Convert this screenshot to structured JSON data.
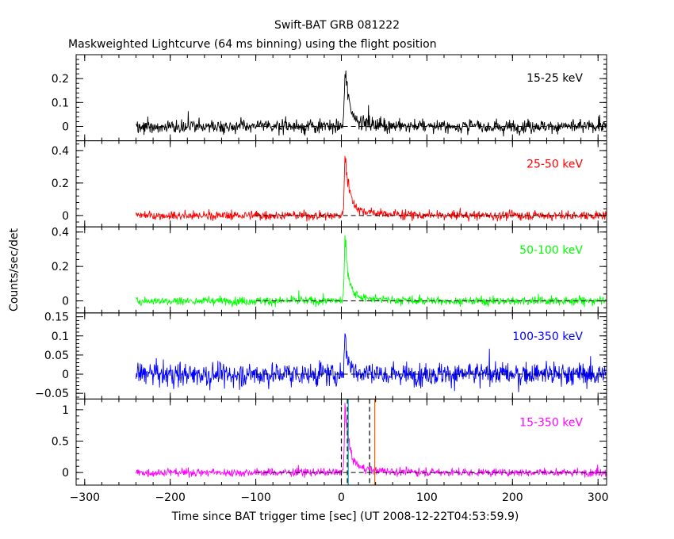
{
  "chart_data": {
    "type": "line",
    "title": "Swift-BAT GRB 081222",
    "subtitle": "Maskweighted Lightcurve (64 ms binning) using the flight position",
    "xlabel": "Time since BAT trigger time [sec] (UT 2008-12-22T04:53:59.9)",
    "ylabel": "Counts/sec/det",
    "xlim": [
      -310,
      310
    ],
    "xticks": [
      -300,
      -200,
      -100,
      0,
      100,
      200,
      300
    ],
    "data_x_range": [
      -240,
      310
    ],
    "peak_time": 4,
    "panels": [
      {
        "name": "15-25 keV",
        "color": "#000000",
        "ylim": [
          -0.06,
          0.3
        ],
        "yticks": [
          0,
          0.1,
          0.2
        ],
        "yticklabels": [
          "0",
          "0.1",
          "0.2"
        ],
        "noise_sigma": 0.02,
        "peak": 0.26,
        "decay": 5
      },
      {
        "name": "25-50 keV",
        "color": "#ff0000",
        "ylim": [
          -0.07,
          0.46
        ],
        "yticks": [
          0,
          0.2,
          0.4
        ],
        "yticklabels": [
          "0",
          "0.2",
          "0.4"
        ],
        "noise_sigma": 0.02,
        "peak": 0.42,
        "decay": 5
      },
      {
        "name": "50-100 keV",
        "color": "#00ff00",
        "ylim": [
          -0.07,
          0.43
        ],
        "yticks": [
          0,
          0.2,
          0.4
        ],
        "yticklabels": [
          "0",
          "0.2",
          "0.4"
        ],
        "noise_sigma": 0.018,
        "peak": 0.4,
        "decay": 4
      },
      {
        "name": "100-350 keV",
        "color": "#0000ff",
        "ylim": [
          -0.065,
          0.16
        ],
        "yticks": [
          -0.05,
          0,
          0.05,
          0.1,
          0.15
        ],
        "yticklabels": [
          "−0.05",
          "0",
          "0.05",
          "0.1",
          "0.15"
        ],
        "noise_sigma": 0.022,
        "peak": 0.12,
        "decay": 3
      },
      {
        "name": "15-350 keV",
        "color": "#ff00ff",
        "ylim": [
          -0.2,
          1.17
        ],
        "yticks": [
          0,
          0.5,
          1
        ],
        "yticklabels": [
          "0",
          "0.5",
          "1"
        ],
        "noise_sigma": 0.045,
        "peak": 1.1,
        "decay": 5
      }
    ],
    "marker_lines": [
      {
        "x": 0,
        "color": "#000000",
        "style": "dashed"
      },
      {
        "x": 7,
        "color": "#000000",
        "style": "dashed"
      },
      {
        "x": 33,
        "color": "#000000",
        "style": "dashed"
      },
      {
        "x": 8,
        "color": "#00a0a0",
        "style": "solid"
      },
      {
        "x": 39,
        "color": "#ff6000",
        "style": "solid"
      }
    ],
    "grid": false,
    "legend": "labels inside each panel, top-right"
  }
}
